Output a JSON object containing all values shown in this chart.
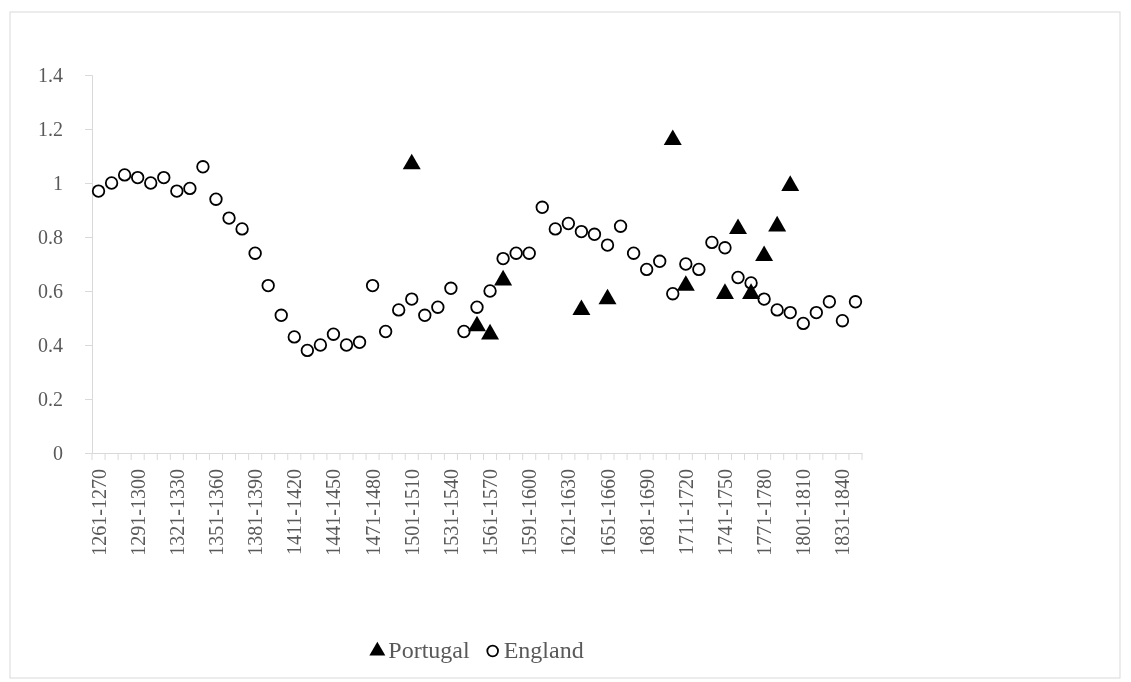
{
  "chart_data": {
    "type": "scatter",
    "categories": [
      "1261-1270",
      null,
      null,
      "1291-1300",
      null,
      null,
      "1321-1330",
      null,
      null,
      "1351-1360",
      null,
      null,
      "1381-1390",
      null,
      null,
      "1411-1420",
      null,
      null,
      "1441-1450",
      null,
      null,
      "1471-1480",
      null,
      null,
      "1501-1510",
      null,
      null,
      "1531-1540",
      null,
      null,
      "1561-1570",
      null,
      null,
      "1591-1600",
      null,
      null,
      "1621-1630",
      null,
      null,
      "1651-1660",
      null,
      null,
      "1681-1690",
      null,
      null,
      "1711-1720",
      null,
      null,
      "1741-1750",
      null,
      null,
      "1771-1780",
      null,
      null,
      "1801-1810",
      null,
      null,
      "1831-1840",
      null
    ],
    "series": [
      {
        "name": "Portugal",
        "color": "#000000",
        "marker": "triangle",
        "values": [
          null,
          null,
          null,
          null,
          null,
          null,
          null,
          null,
          null,
          null,
          null,
          null,
          null,
          null,
          null,
          null,
          null,
          null,
          null,
          null,
          null,
          null,
          null,
          null,
          1.07,
          null,
          null,
          null,
          null,
          0.47,
          0.44,
          0.64,
          null,
          null,
          null,
          null,
          null,
          0.53,
          null,
          0.57,
          null,
          null,
          null,
          null,
          1.16,
          0.62,
          null,
          null,
          0.59,
          0.83,
          0.59,
          0.73,
          0.84,
          0.99,
          null,
          null,
          null,
          null,
          null
        ]
      },
      {
        "name": "England",
        "color": "#000000",
        "marker": "circle",
        "values": [
          0.97,
          1.0,
          1.03,
          1.02,
          1.0,
          1.02,
          0.97,
          0.98,
          1.06,
          0.94,
          0.87,
          0.83,
          0.74,
          0.62,
          0.51,
          0.43,
          0.38,
          0.4,
          0.44,
          0.4,
          0.41,
          0.62,
          0.45,
          0.53,
          0.57,
          0.51,
          0.54,
          0.61,
          0.45,
          0.54,
          0.6,
          0.72,
          0.74,
          0.74,
          0.91,
          0.83,
          0.85,
          0.82,
          0.81,
          0.77,
          0.84,
          0.74,
          0.68,
          0.71,
          0.59,
          0.7,
          0.68,
          0.78,
          0.76,
          0.65,
          0.63,
          0.57,
          0.53,
          0.52,
          0.48,
          0.52,
          0.56,
          0.49,
          0.56
        ]
      }
    ],
    "ylim": [
      0,
      1.4
    ],
    "yticks": [
      0,
      0.2,
      0.4,
      0.6,
      0.8,
      1,
      1.2,
      1.4
    ],
    "grid": false,
    "legend": "bottom"
  }
}
